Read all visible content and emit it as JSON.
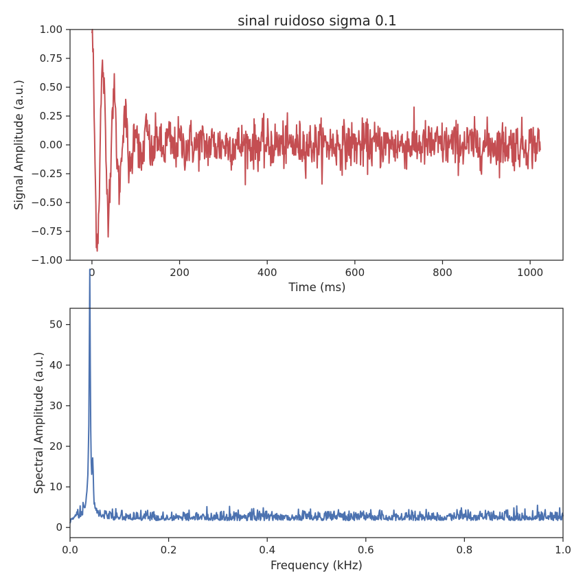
{
  "chart_data": [
    {
      "type": "line",
      "title": "sinal ruidoso sigma 0.1",
      "xlabel": "Time (ms)",
      "ylabel": "Signal Amplitude (a.u.)",
      "xlim": [
        -50,
        1075
      ],
      "ylim": [
        -1.0,
        1.0
      ],
      "xticks": [
        0,
        200,
        400,
        600,
        800,
        1000
      ],
      "xtick_labels": [
        "0",
        "200",
        "400",
        "600",
        "800",
        "1000"
      ],
      "yticks": [
        1.0,
        0.75,
        0.5,
        0.25,
        0.0,
        -0.25,
        -0.5,
        -0.75,
        -1.0
      ],
      "ytick_labels": [
        "1.00",
        "0.75",
        "0.50",
        "0.25",
        "0.00",
        "−0.25",
        "−0.50",
        "−0.75",
        "−1.00"
      ],
      "grid": false,
      "color": "#c44e52",
      "series": [
        {
          "description": "damped oscillation with additive noise, 1024 samples",
          "x": [
            0,
            1023
          ],
          "envelope_decay_ms": 60,
          "oscillation_period_ms": 25,
          "noise_sigma": 0.1,
          "key_points": [
            [
              0,
              0.97
            ],
            [
              12,
              -0.93
            ],
            [
              25,
              0.9
            ],
            [
              38,
              -0.8
            ],
            [
              50,
              0.83
            ],
            [
              63,
              -0.75
            ],
            [
              76,
              0.65
            ],
            [
              100,
              0.55
            ],
            [
              150,
              0.35
            ],
            [
              160,
              -0.45
            ],
            [
              250,
              0.3
            ],
            [
              400,
              0.28
            ],
            [
              500,
              -0.28
            ],
            [
              660,
              0.3
            ],
            [
              800,
              0.3
            ],
            [
              810,
              -0.43
            ],
            [
              960,
              -0.38
            ],
            [
              1012,
              0.34
            ],
            [
              1023,
              -0.1
            ]
          ]
        }
      ]
    },
    {
      "type": "line",
      "title": "",
      "xlabel": "Frequency (kHz)",
      "ylabel": "Spectral Amplitude (a.u.)",
      "xlim": [
        0.0,
        1.0
      ],
      "ylim": [
        -2.5,
        54
      ],
      "xticks": [
        0.0,
        0.2,
        0.4,
        0.6,
        0.8,
        1.0
      ],
      "xtick_labels": [
        "0.0",
        "0.2",
        "0.4",
        "0.6",
        "0.8",
        "1.0"
      ],
      "yticks": [
        0,
        10,
        20,
        30,
        40,
        50
      ],
      "ytick_labels": [
        "0",
        "10",
        "20",
        "30",
        "40",
        "50"
      ],
      "grid": false,
      "color": "#4c72b0",
      "series": [
        {
          "description": "magnitude spectrum of the noisy signal",
          "peak": [
            0.04,
            51.3
          ],
          "secondary_peak": [
            0.046,
            15.0
          ],
          "baseline_level": 2.0,
          "key_points": [
            [
              0.0,
              1.0
            ],
            [
              0.02,
              3.0
            ],
            [
              0.03,
              5.0
            ],
            [
              0.036,
              15.0
            ],
            [
              0.04,
              51.3
            ],
            [
              0.044,
              14.0
            ],
            [
              0.046,
              15.0
            ],
            [
              0.05,
              7.5
            ],
            [
              0.06,
              5.5
            ],
            [
              0.1,
              6.4
            ],
            [
              0.2,
              2.5
            ],
            [
              0.22,
              5.6
            ],
            [
              0.49,
              5.8
            ],
            [
              0.785,
              5.7
            ],
            [
              1.0,
              1.5
            ]
          ]
        }
      ]
    }
  ]
}
